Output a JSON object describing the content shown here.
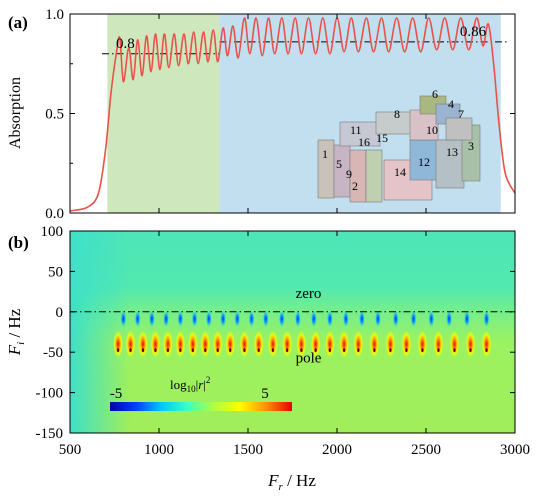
{
  "chart_data": [
    {
      "type": "line",
      "panel_label": "(a)",
      "ylabel": "Absorption",
      "xlim": [
        500,
        3000
      ],
      "ylim": [
        0.0,
        1.0
      ],
      "yticks": [
        "0.0",
        "0.5",
        "1.0"
      ],
      "bands": [
        {
          "name": "green",
          "x": [
            710,
            1340
          ],
          "color": "#cfe7bd"
        },
        {
          "name": "blue",
          "x": [
            1340,
            2920
          ],
          "color": "#c2dff0"
        }
      ],
      "threshold_lines": [
        {
          "label": "0.8",
          "y": 0.8,
          "x": [
            680,
            1340
          ]
        },
        {
          "label": "0.86",
          "y": 0.86,
          "x": [
            1340,
            2960
          ]
        }
      ],
      "series": [
        {
          "color": "#e8524a",
          "points": [
            [
              500,
              0.01
            ],
            [
              600,
              0.03
            ],
            [
              660,
              0.1
            ],
            [
              700,
              0.32
            ],
            [
              730,
              0.6
            ],
            [
              760,
              0.8
            ],
            [
              780,
              0.88
            ],
            [
              800,
              0.66
            ],
            [
              830,
              0.83
            ],
            [
              855,
              0.67
            ],
            [
              880,
              0.87
            ],
            [
              905,
              0.69
            ],
            [
              930,
              0.89
            ],
            [
              955,
              0.71
            ],
            [
              980,
              0.9
            ],
            [
              1005,
              0.72
            ],
            [
              1030,
              0.9
            ],
            [
              1055,
              0.73
            ],
            [
              1085,
              0.9
            ],
            [
              1110,
              0.74
            ],
            [
              1140,
              0.9
            ],
            [
              1165,
              0.75
            ],
            [
              1195,
              0.91
            ],
            [
              1220,
              0.75
            ],
            [
              1250,
              0.91
            ],
            [
              1275,
              0.76
            ],
            [
              1305,
              0.92
            ],
            [
              1330,
              0.76
            ],
            [
              1360,
              0.93
            ],
            [
              1385,
              0.79
            ],
            [
              1415,
              0.94
            ],
            [
              1445,
              0.78
            ],
            [
              1480,
              0.98
            ],
            [
              1510,
              0.8
            ],
            [
              1545,
              0.98
            ],
            [
              1580,
              0.79
            ],
            [
              1615,
              0.98
            ],
            [
              1650,
              0.8
            ],
            [
              1690,
              0.98
            ],
            [
              1725,
              0.8
            ],
            [
              1765,
              0.98
            ],
            [
              1800,
              0.8
            ],
            [
              1840,
              0.98
            ],
            [
              1880,
              0.8
            ],
            [
              1920,
              0.98
            ],
            [
              1960,
              0.8
            ],
            [
              2000,
              0.98
            ],
            [
              2040,
              0.81
            ],
            [
              2080,
              0.98
            ],
            [
              2120,
              0.81
            ],
            [
              2165,
              0.98
            ],
            [
              2205,
              0.81
            ],
            [
              2250,
              0.98
            ],
            [
              2290,
              0.81
            ],
            [
              2335,
              0.98
            ],
            [
              2380,
              0.81
            ],
            [
              2425,
              0.98
            ],
            [
              2470,
              0.81
            ],
            [
              2515,
              0.98
            ],
            [
              2560,
              0.82
            ],
            [
              2605,
              0.98
            ],
            [
              2650,
              0.82
            ],
            [
              2695,
              0.98
            ],
            [
              2740,
              0.82
            ],
            [
              2785,
              0.98
            ],
            [
              2820,
              0.84
            ],
            [
              2850,
              0.95
            ],
            [
              2880,
              0.75
            ],
            [
              2910,
              0.45
            ],
            [
              2945,
              0.2
            ],
            [
              3000,
              0.1
            ]
          ]
        }
      ],
      "inset": {
        "description_labels": [
          "1",
          "2",
          "3",
          "4",
          "5",
          "6",
          "7",
          "8",
          "9",
          "10",
          "11",
          "12",
          "13",
          "14",
          "15",
          "16"
        ]
      }
    },
    {
      "type": "heatmap",
      "panel_label": "(b)",
      "xlabel": "F_r / Hz",
      "ylabel": "F_i / Hz",
      "xlim": [
        500,
        3000
      ],
      "ylim": [
        -150,
        100
      ],
      "xticks": [
        "500",
        "1000",
        "1500",
        "2000",
        "2500",
        "3000"
      ],
      "yticks": [
        "100",
        "50",
        "0",
        "-50",
        "-100",
        "-150"
      ],
      "colorbar": {
        "label": "log10|r|^2",
        "min": "-5",
        "max": "5",
        "colors": [
          "#0000a8",
          "#0040ff",
          "#00c8ff",
          "#40ffc0",
          "#b0ff40",
          "#ffff00",
          "#ff9000",
          "#e80000"
        ]
      },
      "annotations": [
        {
          "text": "zero",
          "x": 1840,
          "y": 17
        },
        {
          "text": "pole",
          "x": 1840,
          "y": -63
        }
      ],
      "zeros_fi": -5,
      "poles_fi": -35,
      "zeros_fr": [
        800,
        880,
        960,
        1040,
        1120,
        1200,
        1280,
        1360,
        1440,
        1520,
        1600,
        1690,
        1780,
        1870,
        1960,
        2050,
        2140,
        2230,
        2330,
        2430,
        2530,
        2630,
        2730,
        2840
      ],
      "poles_fr": [
        770,
        840,
        910,
        980,
        1050,
        1120,
        1190,
        1260,
        1330,
        1400,
        1480,
        1560,
        1640,
        1720,
        1800,
        1880,
        1960,
        2040,
        2120,
        2210,
        2300,
        2390,
        2480,
        2570,
        2660,
        2750,
        2840
      ]
    }
  ]
}
